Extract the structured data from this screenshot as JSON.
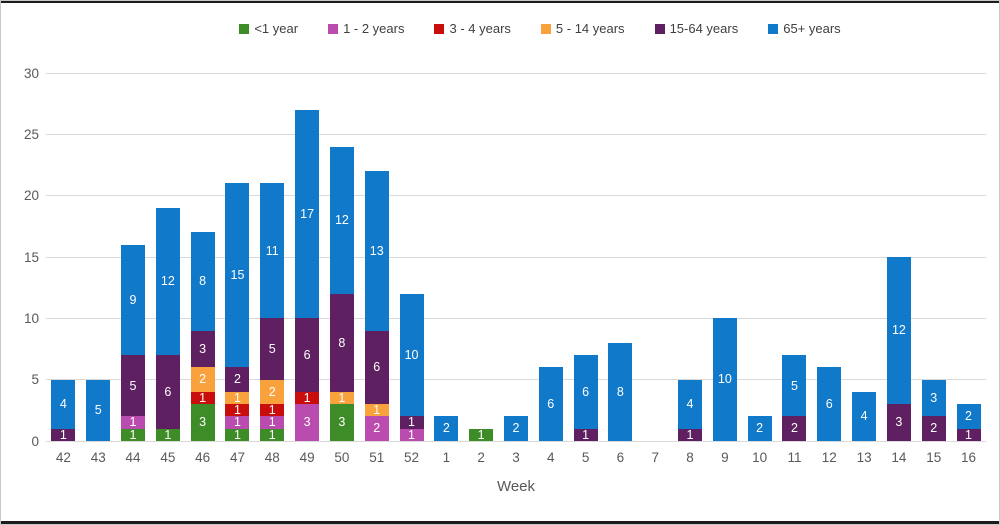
{
  "chart_data": {
    "type": "bar",
    "stacked": true,
    "title": "",
    "xlabel": "Week",
    "ylabel": "",
    "ylim": [
      0,
      30
    ],
    "yticks": [
      0,
      5,
      10,
      15,
      20,
      25,
      30
    ],
    "grid": true,
    "legend_position": "top",
    "show_segment_labels": true,
    "categories": [
      "42",
      "43",
      "44",
      "45",
      "46",
      "47",
      "48",
      "49",
      "50",
      "51",
      "52",
      "1",
      "2",
      "3",
      "4",
      "5",
      "6",
      "7",
      "8",
      "9",
      "10",
      "11",
      "12",
      "13",
      "14",
      "15",
      "16"
    ],
    "series": [
      {
        "name": "<1 year",
        "color": "#3d8c28",
        "values": [
          0,
          0,
          1,
          1,
          3,
          1,
          1,
          0,
          3,
          0,
          0,
          0,
          1,
          0,
          0,
          0,
          0,
          0,
          0,
          0,
          0,
          0,
          0,
          0,
          0,
          0,
          0
        ]
      },
      {
        "name": "1 - 2 years",
        "color": "#b94cae",
        "values": [
          0,
          0,
          1,
          0,
          0,
          1,
          1,
          3,
          0,
          2,
          1,
          0,
          0,
          0,
          0,
          0,
          0,
          0,
          0,
          0,
          0,
          0,
          0,
          0,
          0,
          0,
          0
        ]
      },
      {
        "name": "3 - 4 years",
        "color": "#c90d0d",
        "values": [
          0,
          0,
          0,
          0,
          1,
          1,
          1,
          1,
          0,
          0,
          0,
          0,
          0,
          0,
          0,
          0,
          0,
          0,
          0,
          0,
          0,
          0,
          0,
          0,
          0,
          0,
          0
        ]
      },
      {
        "name": "5 - 14 years",
        "color": "#f8a13d",
        "values": [
          0,
          0,
          0,
          0,
          2,
          1,
          2,
          0,
          1,
          1,
          0,
          0,
          0,
          0,
          0,
          0,
          0,
          0,
          0,
          0,
          0,
          0,
          0,
          0,
          0,
          0,
          0
        ]
      },
      {
        "name": "15-64 years",
        "color": "#5e2060",
        "values": [
          1,
          0,
          5,
          6,
          3,
          2,
          5,
          6,
          8,
          6,
          1,
          0,
          0,
          0,
          0,
          1,
          0,
          0,
          1,
          0,
          0,
          2,
          0,
          0,
          3,
          2,
          1
        ]
      },
      {
        "name": "65+ years",
        "color": "#1079c9",
        "values": [
          4,
          5,
          9,
          12,
          8,
          15,
          11,
          17,
          12,
          13,
          10,
          2,
          0,
          2,
          6,
          6,
          8,
          0,
          4,
          10,
          2,
          5,
          6,
          4,
          12,
          3,
          2
        ]
      }
    ]
  },
  "style_colors": {
    "gridline": "#d9d9d9",
    "axis_text": "#595959",
    "legend_text": "#3f3f3f",
    "segment_label_text": "#ffffff",
    "background": "#ffffff"
  }
}
